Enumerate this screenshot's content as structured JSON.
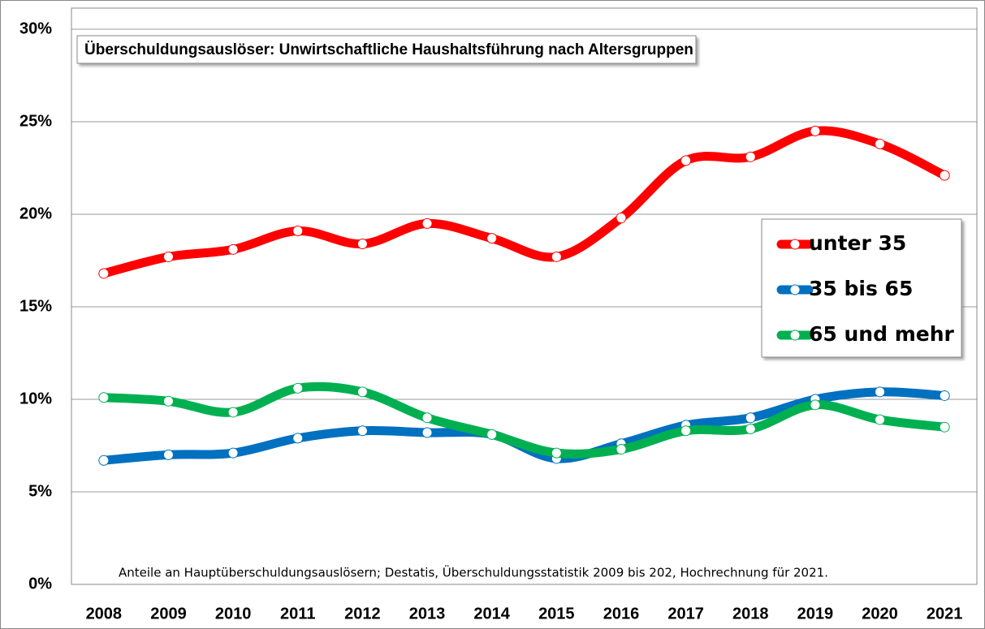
{
  "chart_data": {
    "type": "line",
    "title": "Überschuldungsauslöser: Unwirtschaftliche Haushaltsführung nach Altersgruppen",
    "annotation": "Anteile an Hauptüberschuldungsauslösern; Destatis, Überschuldungsstatistik 2009 bis 202, Hochrechnung für 2021.",
    "categories": [
      "2008",
      "2009",
      "2010",
      "2011",
      "2012",
      "2013",
      "2014",
      "2015",
      "2016",
      "2017",
      "2018",
      "2019",
      "2020",
      "2021"
    ],
    "series": [
      {
        "name": "unter 35",
        "color": "#ff0000",
        "values": [
          16.8,
          17.7,
          18.1,
          19.1,
          18.4,
          19.5,
          18.7,
          17.7,
          19.8,
          22.9,
          23.1,
          24.5,
          23.8,
          22.1
        ]
      },
      {
        "name": "35 bis 65",
        "color": "#0070c0",
        "values": [
          6.7,
          7.0,
          7.1,
          7.9,
          8.3,
          8.2,
          8.1,
          6.8,
          7.6,
          8.6,
          9.0,
          10.0,
          10.4,
          10.2
        ]
      },
      {
        "name": "65 und mehr",
        "color": "#00b050",
        "values": [
          10.1,
          9.9,
          9.3,
          10.6,
          10.4,
          9.0,
          8.1,
          7.1,
          7.3,
          8.3,
          8.4,
          9.7,
          8.9,
          8.5
        ]
      }
    ],
    "ylim": [
      0,
      30
    ],
    "yticks": [
      {
        "value": 0,
        "label": "0%"
      },
      {
        "value": 5,
        "label": "5%"
      },
      {
        "value": 10,
        "label": "10%"
      },
      {
        "value": 15,
        "label": "15%"
      },
      {
        "value": 20,
        "label": "20%"
      },
      {
        "value": 25,
        "label": "25%"
      },
      {
        "value": 30,
        "label": "30%"
      }
    ],
    "grid": true,
    "smooth": true,
    "legend": "right"
  }
}
